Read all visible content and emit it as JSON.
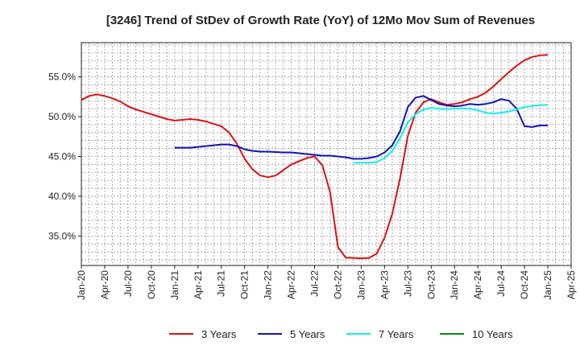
{
  "chart_data": {
    "type": "line",
    "title": "[3246]  Trend of StDev of Growth Rate (YoY) of 12Mo Mov Sum of Revenues",
    "xlabel": "",
    "ylabel": "",
    "ylim": [
      31.3,
      59.3
    ],
    "y_ticks": [
      35,
      40,
      45,
      50,
      55
    ],
    "y_tick_labels": [
      "35.0%",
      "40.0%",
      "45.0%",
      "50.0%",
      "55.0%"
    ],
    "x_ticks": [
      "Jan-20",
      "Apr-20",
      "Jul-20",
      "Oct-20",
      "Jan-21",
      "Apr-21",
      "Jul-21",
      "Oct-21",
      "Jan-22",
      "Apr-22",
      "Jul-22",
      "Oct-22",
      "Jan-23",
      "Apr-23",
      "Jul-23",
      "Oct-23",
      "Jan-24",
      "Apr-24",
      "Jul-24",
      "Oct-24",
      "Jan-25",
      "Apr-25"
    ],
    "x_range_months": [
      0,
      63
    ],
    "grid": true,
    "legend_position": "bottom",
    "series": [
      {
        "name": "3 Years",
        "color": "#dd1111",
        "points": [
          [
            0,
            52.1
          ],
          [
            1,
            52.6
          ],
          [
            2,
            52.8
          ],
          [
            3,
            52.6
          ],
          [
            4,
            52.3
          ],
          [
            5,
            51.9
          ],
          [
            6,
            51.3
          ],
          [
            7,
            50.9
          ],
          [
            8,
            50.6
          ],
          [
            9,
            50.3
          ],
          [
            10,
            50.0
          ],
          [
            11,
            49.7
          ],
          [
            12,
            49.5
          ],
          [
            13,
            49.6
          ],
          [
            14,
            49.7
          ],
          [
            15,
            49.6
          ],
          [
            16,
            49.4
          ],
          [
            17,
            49.1
          ],
          [
            18,
            48.8
          ],
          [
            19,
            48.0
          ],
          [
            20,
            46.6
          ],
          [
            21,
            44.7
          ],
          [
            22,
            43.4
          ],
          [
            23,
            42.6
          ],
          [
            24,
            42.4
          ],
          [
            25,
            42.6
          ],
          [
            26,
            43.3
          ],
          [
            27,
            44.0
          ],
          [
            28,
            44.4
          ],
          [
            29,
            44.8
          ],
          [
            30,
            45.0
          ],
          [
            31,
            43.9
          ],
          [
            32,
            40.5
          ],
          [
            33,
            33.6
          ],
          [
            34,
            32.3
          ],
          [
            35,
            32.25
          ],
          [
            36,
            32.2
          ],
          [
            37,
            32.25
          ],
          [
            38,
            32.8
          ],
          [
            39,
            34.8
          ],
          [
            40,
            37.8
          ],
          [
            41,
            42.3
          ],
          [
            42,
            47.6
          ],
          [
            43,
            50.5
          ],
          [
            44,
            51.8
          ],
          [
            45,
            52.2
          ],
          [
            46,
            51.8
          ],
          [
            47,
            51.5
          ],
          [
            48,
            51.6
          ],
          [
            49,
            51.8
          ],
          [
            50,
            52.2
          ],
          [
            51,
            52.5
          ],
          [
            52,
            53.0
          ],
          [
            53,
            53.8
          ],
          [
            54,
            54.7
          ],
          [
            55,
            55.6
          ],
          [
            56,
            56.4
          ],
          [
            57,
            57.1
          ],
          [
            58,
            57.5
          ],
          [
            59,
            57.7
          ],
          [
            60,
            57.75
          ]
        ]
      },
      {
        "name": "5 Years",
        "color": "#1111bb",
        "points": [
          [
            12,
            46.1
          ],
          [
            13,
            46.1
          ],
          [
            14,
            46.1
          ],
          [
            15,
            46.2
          ],
          [
            16,
            46.3
          ],
          [
            17,
            46.4
          ],
          [
            18,
            46.5
          ],
          [
            19,
            46.5
          ],
          [
            20,
            46.3
          ],
          [
            21,
            45.9
          ],
          [
            22,
            45.7
          ],
          [
            23,
            45.6
          ],
          [
            24,
            45.6
          ],
          [
            25,
            45.55
          ],
          [
            26,
            45.5
          ],
          [
            27,
            45.5
          ],
          [
            28,
            45.4
          ],
          [
            29,
            45.3
          ],
          [
            30,
            45.2
          ],
          [
            31,
            45.1
          ],
          [
            32,
            45.1
          ],
          [
            33,
            45.0
          ],
          [
            34,
            44.9
          ],
          [
            35,
            44.7
          ],
          [
            36,
            44.7
          ],
          [
            37,
            44.8
          ],
          [
            38,
            45.0
          ],
          [
            39,
            45.5
          ],
          [
            40,
            46.4
          ],
          [
            41,
            48.2
          ],
          [
            42,
            51.2
          ],
          [
            43,
            52.4
          ],
          [
            44,
            52.6
          ],
          [
            45,
            52.1
          ],
          [
            46,
            51.6
          ],
          [
            47,
            51.4
          ],
          [
            48,
            51.3
          ],
          [
            49,
            51.4
          ],
          [
            50,
            51.6
          ],
          [
            51,
            51.5
          ],
          [
            52,
            51.6
          ],
          [
            53,
            51.8
          ],
          [
            54,
            52.2
          ],
          [
            55,
            52.0
          ],
          [
            56,
            51.0
          ],
          [
            57,
            48.8
          ],
          [
            58,
            48.7
          ],
          [
            59,
            48.9
          ],
          [
            60,
            48.9
          ]
        ]
      },
      {
        "name": "7 Years",
        "color": "#11eeee",
        "points": [
          [
            35,
            44.2
          ],
          [
            36,
            44.2
          ],
          [
            37,
            44.2
          ],
          [
            38,
            44.3
          ],
          [
            39,
            44.8
          ],
          [
            40,
            45.7
          ],
          [
            41,
            47.3
          ],
          [
            42,
            49.3
          ],
          [
            43,
            50.3
          ],
          [
            44,
            50.9
          ],
          [
            45,
            51.1
          ],
          [
            46,
            51.0
          ],
          [
            47,
            50.95
          ],
          [
            48,
            51.0
          ],
          [
            49,
            51.0
          ],
          [
            50,
            51.0
          ],
          [
            51,
            50.8
          ],
          [
            52,
            50.5
          ],
          [
            53,
            50.4
          ],
          [
            54,
            50.5
          ],
          [
            55,
            50.65
          ],
          [
            56,
            50.9
          ],
          [
            57,
            51.2
          ],
          [
            58,
            51.35
          ],
          [
            59,
            51.45
          ],
          [
            60,
            51.5
          ]
        ]
      },
      {
        "name": "10 Years",
        "color": "#118811",
        "points": []
      }
    ]
  }
}
